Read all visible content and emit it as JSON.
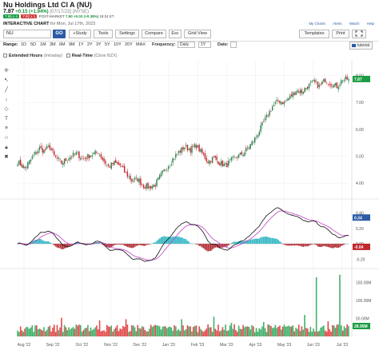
{
  "header": {
    "title": "Nu Holdings Ltd Cl A (NU)",
    "price": "7.87",
    "change": "+0.15 (+1.94%)",
    "quote_time": "[07/17/23] (NYSE)",
    "bid_badge": "7.85 x 4",
    "ask_badge": "7.92 x 1",
    "post_market_label": "POST-MARKET",
    "post_market_price": "7.90",
    "post_market_change": "+0.03 (+0.38%)",
    "post_market_time": "18:24 ET",
    "chart_label": "INTERACTIVE CHART",
    "chart_date": "for Mon, Jul 17th, 2023"
  },
  "top_links": {
    "my_charts": "My Charts",
    "alerts": "Alerts",
    "watch": "Watch",
    "help": "Help"
  },
  "toolbar": {
    "symbol_value": "NU",
    "go_label": "GO",
    "buttons": [
      "+Study",
      "Tools",
      "Settings",
      "Compare",
      "Esc",
      "Grid View"
    ],
    "templates": "Templates",
    "print": "Print",
    "expand_icon": "expand-icon"
  },
  "range": {
    "label": "Range:",
    "options": [
      "1D",
      "5D",
      "1M",
      "3M",
      "6M",
      "9M",
      "1Y",
      "2Y",
      "3Y",
      "5Y",
      "10Y",
      "20Y",
      "MAX"
    ],
    "frequency_label": "Frequency:",
    "frequency_value": "Daily",
    "interval_value": "1Y",
    "date_label": "Date:",
    "tutorial": "tutorial"
  },
  "checks": {
    "extended_label": "Extended Hours",
    "extended_note": "(Intraday)",
    "realtime_label": "Real-Time",
    "realtime_note": "(Cboe BZX)"
  },
  "colors": {
    "up": "#2f7d4a",
    "down": "#c1272d",
    "accent": "#2d5aa6",
    "macd": "#111111",
    "signal": "#c040c8",
    "hist_pos": "#35b7c4",
    "hist_neg": "#b32f38"
  },
  "chart_data": {
    "type": "line",
    "x_ticks": [
      "Aug '22",
      "Sep '22",
      "Oct '22",
      "Nov '22",
      "Dec '22",
      "Jan '23",
      "Feb '23",
      "Mar '23",
      "Apr '23",
      "May '23",
      "Jun '23",
      "Jul '23"
    ],
    "price_ticks": [
      "8.00",
      "7.00",
      "6.00",
      "5.00",
      "4.00"
    ],
    "price_range": [
      3.5,
      8.55
    ],
    "current_price_label": "7.87",
    "macd_ticks": [
      "0.40",
      "0.20",
      "0.00",
      "-0.20"
    ],
    "macd_range": [
      -0.3,
      0.55
    ],
    "macd_value_label": "0.34",
    "hist_value_label": "-0.04",
    "volume_ticks": [
      "150.00M",
      "100.00M",
      "50.00M"
    ],
    "volume_range_m": [
      0,
      185
    ],
    "volume_value_label": "28.95M",
    "close_anchors": [
      [
        0,
        4.8
      ],
      [
        5,
        4.55
      ],
      [
        10,
        4.95
      ],
      [
        15,
        5.3
      ],
      [
        18,
        5.2
      ],
      [
        22,
        5.35
      ],
      [
        25,
        5.0
      ],
      [
        30,
        4.75
      ],
      [
        35,
        4.95
      ],
      [
        40,
        5.1
      ],
      [
        45,
        4.9
      ],
      [
        50,
        5.05
      ],
      [
        55,
        5.15
      ],
      [
        58,
        4.9
      ],
      [
        62,
        4.6
      ],
      [
        66,
        4.75
      ],
      [
        70,
        4.65
      ],
      [
        74,
        4.35
      ],
      [
        78,
        4.1
      ],
      [
        82,
        4.15
      ],
      [
        86,
        3.9
      ],
      [
        90,
        3.85
      ],
      [
        94,
        3.95
      ],
      [
        98,
        4.3
      ],
      [
        102,
        4.6
      ],
      [
        106,
        4.9
      ],
      [
        110,
        5.15
      ],
      [
        114,
        5.35
      ],
      [
        118,
        5.25
      ],
      [
        122,
        5.4
      ],
      [
        126,
        5.1
      ],
      [
        130,
        4.8
      ],
      [
        134,
        4.95
      ],
      [
        138,
        4.75
      ],
      [
        142,
        4.65
      ],
      [
        146,
        4.85
      ],
      [
        150,
        5.0
      ],
      [
        154,
        5.1
      ],
      [
        158,
        5.35
      ],
      [
        162,
        5.65
      ],
      [
        166,
        6.05
      ],
      [
        170,
        6.45
      ],
      [
        174,
        6.85
      ],
      [
        178,
        7.05
      ],
      [
        182,
        7.0
      ],
      [
        186,
        7.2
      ],
      [
        190,
        7.45
      ],
      [
        194,
        7.4
      ],
      [
        198,
        7.6
      ],
      [
        202,
        7.75
      ],
      [
        206,
        7.6
      ],
      [
        210,
        7.85
      ],
      [
        214,
        7.7
      ],
      [
        218,
        7.6
      ],
      [
        222,
        7.85
      ],
      [
        226,
        7.87
      ]
    ],
    "volume_spikes": [
      [
        2,
        28
      ],
      [
        9,
        25
      ],
      [
        14,
        20
      ],
      [
        22,
        30
      ],
      [
        30,
        52
      ],
      [
        38,
        26
      ],
      [
        48,
        32
      ],
      [
        56,
        45
      ],
      [
        66,
        20
      ],
      [
        74,
        48
      ],
      [
        82,
        32
      ],
      [
        96,
        30
      ],
      [
        112,
        48
      ],
      [
        122,
        30
      ],
      [
        134,
        55
      ],
      [
        146,
        38
      ],
      [
        156,
        28
      ],
      [
        168,
        40
      ],
      [
        176,
        32
      ],
      [
        186,
        28
      ],
      [
        196,
        60
      ],
      [
        204,
        165
      ],
      [
        212,
        42
      ],
      [
        220,
        172
      ],
      [
        226,
        29
      ]
    ]
  }
}
